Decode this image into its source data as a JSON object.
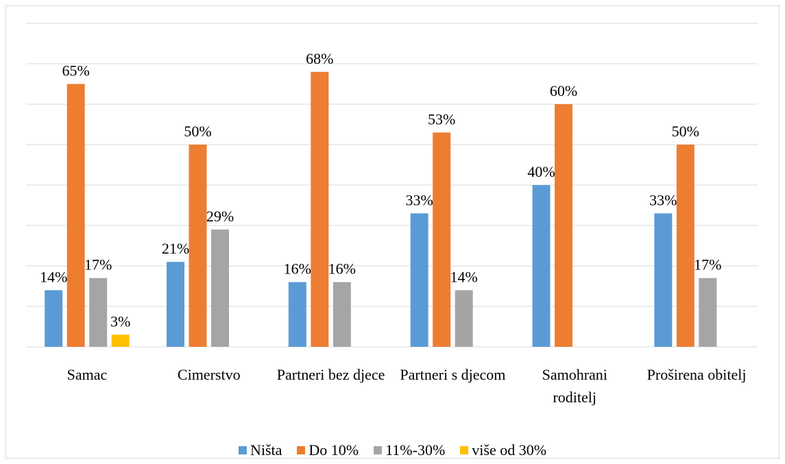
{
  "chart_data": {
    "type": "bar",
    "categories": [
      "Samac",
      "Cimerstvo",
      "Partneri bez djece",
      "Partneri s djecom",
      "Samohrani roditelj",
      "Proširena obitelj"
    ],
    "series": [
      {
        "name": "Ništa",
        "color": "#5b9bd5",
        "values": [
          14,
          21,
          16,
          33,
          40,
          33
        ],
        "value_labels": [
          "14%",
          "21%",
          "16%",
          "33%",
          "40%",
          "33%"
        ]
      },
      {
        "name": "Do 10%",
        "color": "#ed7d31",
        "values": [
          65,
          50,
          68,
          53,
          60,
          50
        ],
        "value_labels": [
          "65%",
          "50%",
          "68%",
          "53%",
          "60%",
          "50%"
        ]
      },
      {
        "name": "11%-30%",
        "color": "#a5a5a5",
        "values": [
          17,
          29,
          16,
          14,
          null,
          17
        ],
        "value_labels": [
          "17%",
          "29%",
          "16%",
          "14%",
          null,
          "17%"
        ]
      },
      {
        "name": "više od 30%",
        "color": "#ffc000",
        "values": [
          3,
          null,
          null,
          null,
          null,
          null
        ],
        "value_labels": [
          "3%",
          null,
          null,
          null,
          null,
          null
        ]
      }
    ],
    "ylim": [
      0,
      80
    ],
    "yticks": [
      0,
      10,
      20,
      30,
      40,
      50,
      60,
      70,
      80
    ],
    "grid": true,
    "legend": "bottom"
  }
}
